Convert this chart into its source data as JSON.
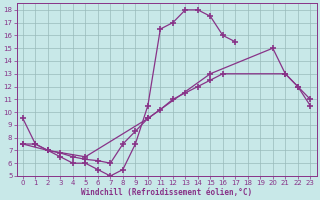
{
  "xlabel": "Windchill (Refroidissement éolien,°C)",
  "line_color": "#883388",
  "bg_color": "#c8e8e8",
  "grid_color": "#99bbbb",
  "xlim": [
    -0.5,
    23.5
  ],
  "ylim": [
    5,
    18.5
  ],
  "xticks": [
    0,
    1,
    2,
    3,
    4,
    5,
    6,
    7,
    8,
    9,
    10,
    11,
    12,
    13,
    14,
    15,
    16,
    17,
    18,
    19,
    20,
    21,
    22,
    23
  ],
  "yticks": [
    5,
    6,
    7,
    8,
    9,
    10,
    11,
    12,
    13,
    14,
    15,
    16,
    17,
    18
  ],
  "curve1_x": [
    0,
    1,
    2,
    3,
    4,
    5,
    6,
    7,
    8,
    9,
    10,
    11,
    12,
    13,
    14,
    15,
    16,
    17
  ],
  "curve1_y": [
    9.5,
    7.5,
    7.0,
    6.5,
    6.0,
    6.0,
    5.5,
    5.0,
    5.5,
    7.5,
    10.5,
    16.5,
    17.0,
    18.0,
    18.0,
    17.5,
    16.0,
    15.5
  ],
  "curve2_x": [
    0,
    1,
    2,
    3,
    4,
    5,
    6,
    7,
    8,
    9,
    10,
    11,
    12,
    13,
    14,
    15,
    16,
    21,
    22,
    23
  ],
  "curve2_y": [
    7.5,
    7.5,
    7.0,
    6.8,
    6.5,
    6.3,
    6.2,
    6.0,
    7.5,
    8.5,
    9.5,
    10.2,
    11.0,
    11.5,
    12.0,
    12.5,
    13.0,
    13.0,
    12.0,
    11.0
  ],
  "curve3_x": [
    0,
    2,
    5,
    10,
    15,
    20,
    21,
    22,
    23
  ],
  "curve3_y": [
    7.5,
    7.0,
    6.5,
    9.5,
    13.0,
    15.0,
    13.0,
    12.0,
    10.5
  ]
}
